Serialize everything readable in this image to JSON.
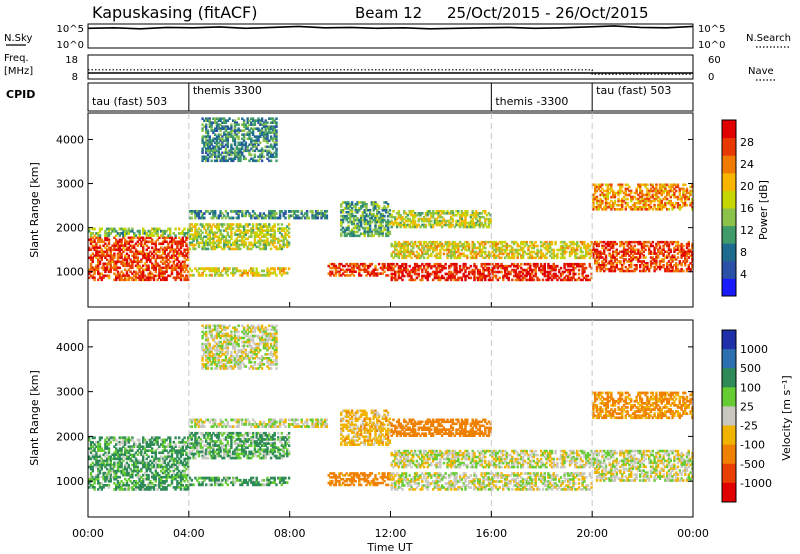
{
  "header": {
    "station": "Kapuskasing (fitACF)",
    "beam": "Beam 12",
    "daterange": "25/Oct/2015 - 26/Oct/2015"
  },
  "noise_panel": {
    "left_label": "N.Sky",
    "left_ticks": [
      "10^5",
      "10^0"
    ],
    "right_ticks": [
      "10^5",
      "10^0"
    ],
    "right_label": "N.Search",
    "sky_trace": [
      4.1,
      4.2,
      4.0,
      4.3,
      4.2,
      4.4,
      4.1,
      4.3,
      4.5,
      4.2,
      4.3,
      4.1,
      4.2,
      4.0,
      4.1,
      4.2,
      4.3,
      4.1,
      4.2,
      4.4,
      4.6,
      4.3,
      4.2,
      4.5
    ]
  },
  "freq_panel": {
    "left_label_1": "Freq.",
    "left_label_2": "[MHz]",
    "left_ticks": [
      "18",
      "8"
    ],
    "right_ticks": [
      "60",
      "0"
    ],
    "right_label": "Nave",
    "freq_mhz": 10.5,
    "nave_before": 23,
    "nave_after": 12
  },
  "cpid": {
    "label": "CPID",
    "segments": [
      {
        "name": "tau (fast) 503",
        "start_h": 0,
        "end_h": 4
      },
      {
        "name": "themis 3300",
        "start_h": 4,
        "end_h": 16
      },
      {
        "name": "themis -3300",
        "start_h": 16,
        "end_h": 20
      },
      {
        "name": "tau (fast) 503",
        "start_h": 20,
        "end_h": 24
      }
    ]
  },
  "power_panel": {
    "ylabel": "Slant Range [km]",
    "yticks": [
      1000,
      2000,
      3000,
      4000
    ],
    "ylim": [
      200,
      4600
    ],
    "colorbar_label": "Power [dB]",
    "colorbar_ticks": [
      4,
      8,
      12,
      16,
      20,
      24,
      28
    ]
  },
  "velocity_panel": {
    "ylabel": "Slant Range [km]",
    "yticks": [
      1000,
      2000,
      3000,
      4000
    ],
    "ylim": [
      200,
      4600
    ],
    "colorbar_label": "Velocity [m s⁻¹]",
    "colorbar_ticks": [
      1000,
      500,
      100,
      25,
      -25,
      -100,
      -500,
      -1000
    ]
  },
  "xaxis": {
    "label": "Time UT",
    "ticks": [
      "00:00",
      "04:00",
      "08:00",
      "12:00",
      "16:00",
      "20:00",
      "00:00"
    ],
    "xlim_h": [
      0,
      24
    ]
  },
  "chart_data": {
    "type": "heatmap",
    "title": "Kapuskasing (fitACF)  Beam 12  25/Oct/2015 - 26/Oct/2015",
    "xlabel": "Time UT",
    "ylabel": "Slant Range [km]",
    "xlim_hours": [
      0,
      24
    ],
    "ylim_km": [
      200,
      4600
    ],
    "echo_bands": [
      {
        "start_h": 0.0,
        "end_h": 4.0,
        "range_km": [
          800,
          1800
        ],
        "power_db": 26,
        "velocity": 75
      },
      {
        "start_h": 0.0,
        "end_h": 4.0,
        "range_km": [
          1800,
          2000
        ],
        "power_db": 14,
        "velocity": 60
      },
      {
        "start_h": 4.0,
        "end_h": 9.5,
        "range_km": [
          2200,
          2400
        ],
        "power_db": 10,
        "velocity": 0
      },
      {
        "start_h": 4.0,
        "end_h": 8.0,
        "range_km": [
          1500,
          2100
        ],
        "power_db": 16,
        "velocity": 60
      },
      {
        "start_h": 4.0,
        "end_h": 8.0,
        "range_km": [
          900,
          1100
        ],
        "power_db": 18,
        "velocity": 70
      },
      {
        "start_h": 9.5,
        "end_h": 12.0,
        "range_km": [
          900,
          1200
        ],
        "power_db": 26,
        "velocity": -150
      },
      {
        "start_h": 10.0,
        "end_h": 12.0,
        "range_km": [
          1800,
          2600
        ],
        "power_db": 12,
        "velocity": -60
      },
      {
        "start_h": 12.0,
        "end_h": 20.0,
        "range_km": [
          800,
          1200
        ],
        "power_db": 28,
        "velocity": 0
      },
      {
        "start_h": 12.0,
        "end_h": 20.0,
        "range_km": [
          1300,
          1700
        ],
        "power_db": 18,
        "velocity": 0
      },
      {
        "start_h": 12.0,
        "end_h": 16.0,
        "range_km": [
          2000,
          2400
        ],
        "power_db": 16,
        "velocity": -200
      },
      {
        "start_h": 20.0,
        "end_h": 24.0,
        "range_km": [
          1000,
          1700
        ],
        "power_db": 26,
        "velocity": 0
      },
      {
        "start_h": 20.0,
        "end_h": 24.0,
        "range_km": [
          2400,
          3000
        ],
        "power_db": 22,
        "velocity": -120
      },
      {
        "start_h": 4.5,
        "end_h": 7.5,
        "range_km": [
          3500,
          4500
        ],
        "power_db": 10,
        "velocity": 0
      }
    ],
    "power_colorbar": {
      "label": "Power [dB]",
      "ticks": [
        4,
        8,
        12,
        16,
        20,
        24,
        28
      ]
    },
    "velocity_colorbar": {
      "label": "Velocity [m s⁻¹]",
      "ticks": [
        1000,
        500,
        100,
        25,
        -25,
        -100,
        -500,
        -1000
      ]
    }
  },
  "colors": {
    "power_scale": [
      "#1a1aff",
      "#2b50a8",
      "#1f6b8f",
      "#3f9b6a",
      "#8bc34a",
      "#c6d600",
      "#f7b500",
      "#f07b00",
      "#e83a00",
      "#e00000"
    ],
    "velocity_scale": [
      "#1f2fa8",
      "#2c6fb0",
      "#2e8b57",
      "#66cc33",
      "#c8c8c0",
      "#f0b400",
      "#f08000",
      "#e84000",
      "#e00000"
    ]
  }
}
